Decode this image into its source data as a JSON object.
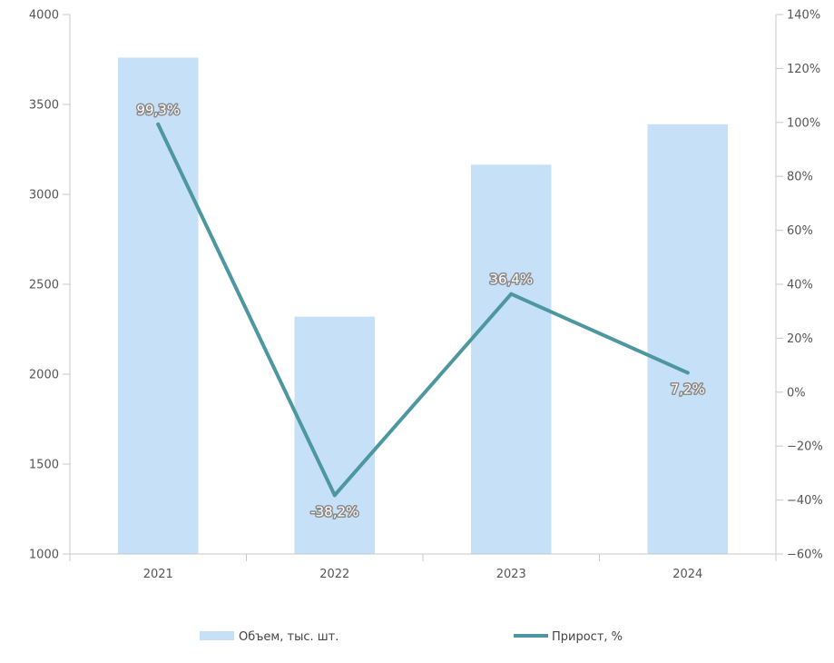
{
  "chart_data": {
    "type": "bar",
    "categories": [
      "2021",
      "2022",
      "2023",
      "2024"
    ],
    "series": [
      {
        "name": "Объем, тыс. шт.",
        "type": "bar",
        "axis": "left",
        "values": [
          3760,
          2320,
          3165,
          3390
        ],
        "color": "#c5e0f7"
      },
      {
        "name": "Прирост, %",
        "type": "line",
        "axis": "right",
        "values": [
          99.3,
          -38.2,
          36.4,
          7.2
        ],
        "labels": [
          "99,3%",
          "-38,2%",
          "36,4%",
          "7,2%"
        ],
        "color": "#4e97a0"
      }
    ],
    "y_left": {
      "min": 1000,
      "max": 4000,
      "ticks": [
        1000,
        1500,
        2000,
        2500,
        3000,
        3500,
        4000
      ],
      "tick_labels": [
        "1000",
        "1500",
        "2000",
        "2500",
        "3000",
        "3500",
        "4000"
      ]
    },
    "y_right": {
      "min": -60,
      "max": 140,
      "ticks": [
        -60,
        -40,
        -20,
        0,
        20,
        40,
        60,
        80,
        100,
        120,
        140
      ],
      "tick_labels": [
        "−60%",
        "−40%",
        "−20%",
        "0%",
        "20%",
        "40%",
        "60%",
        "80%",
        "100%",
        "120%",
        "140%"
      ]
    },
    "grid": false,
    "legend_position": "bottom"
  }
}
